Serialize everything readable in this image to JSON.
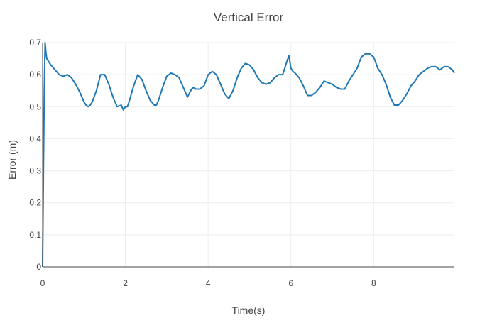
{
  "chart_data": {
    "type": "line",
    "title": "Vertical Error",
    "xlabel": "Time(s)",
    "ylabel": "Error (m)",
    "xlim": [
      0,
      9.95
    ],
    "ylim": [
      0,
      0.7
    ],
    "x_ticks": [
      0,
      2,
      4,
      6,
      8
    ],
    "y_ticks": [
      0,
      0.1,
      0.2,
      0.3,
      0.4,
      0.5,
      0.6,
      0.7
    ],
    "grid": true,
    "legend": "none",
    "series_color": "#1f77b4",
    "series": [
      {
        "x": [
          0,
          0.02,
          0.04,
          0.06,
          0.08,
          0.1,
          0.15,
          0.2,
          0.3,
          0.4,
          0.5,
          0.6,
          0.7,
          0.8,
          0.9,
          1.0,
          1.05,
          1.1,
          1.15,
          1.2,
          1.3,
          1.4,
          1.5,
          1.6,
          1.7,
          1.8,
          1.9,
          1.95,
          2.0,
          2.05,
          2.1,
          2.2,
          2.3,
          2.4,
          2.5,
          2.6,
          2.7,
          2.75,
          2.8,
          2.9,
          3.0,
          3.1,
          3.2,
          3.3,
          3.4,
          3.5,
          3.6,
          3.65,
          3.7,
          3.8,
          3.9,
          4.0,
          4.1,
          4.2,
          4.3,
          4.4,
          4.5,
          4.6,
          4.7,
          4.8,
          4.9,
          5.0,
          5.1,
          5.2,
          5.3,
          5.4,
          5.5,
          5.6,
          5.7,
          5.8,
          5.9,
          5.95,
          6.0,
          6.05,
          6.1,
          6.2,
          6.3,
          6.4,
          6.5,
          6.6,
          6.7,
          6.8,
          6.9,
          7.0,
          7.1,
          7.2,
          7.3,
          7.4,
          7.5,
          7.6,
          7.7,
          7.8,
          7.9,
          8.0,
          8.1,
          8.2,
          8.3,
          8.4,
          8.5,
          8.6,
          8.7,
          8.8,
          8.9,
          9.0,
          9.1,
          9.2,
          9.3,
          9.4,
          9.5,
          9.6,
          9.7,
          9.8,
          9.9,
          9.95
        ],
        "y": [
          0.0,
          0.3,
          0.55,
          0.7,
          0.67,
          0.65,
          0.64,
          0.63,
          0.615,
          0.6,
          0.595,
          0.6,
          0.59,
          0.57,
          0.545,
          0.515,
          0.505,
          0.5,
          0.505,
          0.515,
          0.55,
          0.6,
          0.6,
          0.57,
          0.53,
          0.5,
          0.505,
          0.49,
          0.5,
          0.5,
          0.52,
          0.565,
          0.6,
          0.585,
          0.55,
          0.52,
          0.505,
          0.505,
          0.52,
          0.56,
          0.595,
          0.605,
          0.6,
          0.59,
          0.56,
          0.53,
          0.555,
          0.56,
          0.555,
          0.555,
          0.565,
          0.6,
          0.61,
          0.6,
          0.57,
          0.54,
          0.525,
          0.55,
          0.59,
          0.62,
          0.635,
          0.63,
          0.615,
          0.59,
          0.575,
          0.57,
          0.575,
          0.59,
          0.6,
          0.6,
          0.64,
          0.66,
          0.62,
          0.61,
          0.605,
          0.59,
          0.565,
          0.535,
          0.535,
          0.545,
          0.56,
          0.58,
          0.575,
          0.57,
          0.56,
          0.555,
          0.555,
          0.58,
          0.6,
          0.62,
          0.655,
          0.665,
          0.665,
          0.655,
          0.62,
          0.6,
          0.57,
          0.53,
          0.505,
          0.505,
          0.52,
          0.54,
          0.565,
          0.58,
          0.6,
          0.61,
          0.62,
          0.625,
          0.625,
          0.615,
          0.625,
          0.625,
          0.615,
          0.605
        ]
      }
    ]
  }
}
